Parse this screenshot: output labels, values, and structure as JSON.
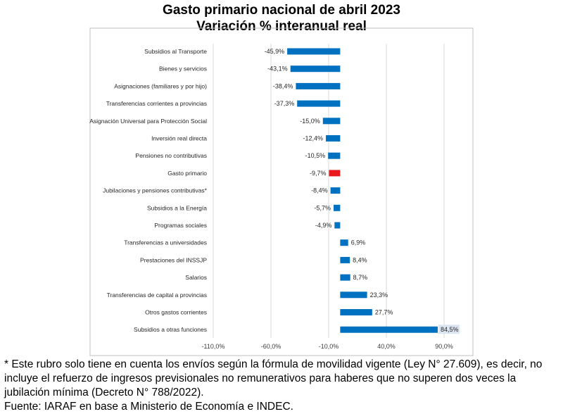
{
  "chart_data": {
    "type": "bar",
    "orientation": "horizontal",
    "title": "Gasto primario nacional de abril 2023",
    "subtitle": "Variación % interanual real",
    "categories": [
      "Subsidios al Transporte",
      "Bienes y servicios",
      "Asignaciones (familiares y por hijo)",
      "Transferencias corrientes a provincias",
      "Asignación Universal para Protección Social",
      "Inversión real directa",
      "Pensiones no contributivas",
      "Gasto primario",
      "Jubilaciones y pensiones contributivas*",
      "Subsidios a la Energía",
      "Programas sociales",
      "Transferencias a universidades",
      "Prestaciones del INSSJP",
      "Salarios",
      "Transferencias de capital a provincias",
      "Otros gastos corrientes",
      "Subsidios a otras funciones"
    ],
    "values": [
      -45.9,
      -43.1,
      -38.4,
      -37.3,
      -15.0,
      -12.4,
      -10.5,
      -9.7,
      -8.4,
      -5.7,
      -4.9,
      6.9,
      8.4,
      8.7,
      23.3,
      27.7,
      84.5
    ],
    "value_labels": [
      "-45,9%",
      "-43,1%",
      "-38,4%",
      "-37,3%",
      "-15,0%",
      "-12,4%",
      "-10,5%",
      "-9,7%",
      "-8,4%",
      "-5,7%",
      "-4,9%",
      "6,9%",
      "8,4%",
      "8,7%",
      "23,3%",
      "27,7%",
      "84,5%"
    ],
    "highlight": "Gasto primario",
    "xlim": [
      -110,
      116
    ],
    "x_ticks": [
      -110,
      -60,
      -10,
      40,
      90
    ],
    "x_tick_labels": [
      "-110,0%",
      "-60,0%",
      "-10,0%",
      "40,0%",
      "90,0%"
    ],
    "grid": "vertical",
    "colors": {
      "bar": "#0070C0",
      "highlight": "#E8191C",
      "grid": "#D9D9D9"
    }
  },
  "notes": {
    "footnote": "* Este rubro solo tiene en cuenta los envíos según la fórmula de movilidad vigente (Ley N° 27.609), es decir, no incluye el refuerzo de ingresos previsionales no remunerativos para haberes que no superen dos veces la jubilación mínima (Decreto N° 788/2022).",
    "source": "Fuente: IARAF en base a Ministerio de Economía e INDEC."
  }
}
